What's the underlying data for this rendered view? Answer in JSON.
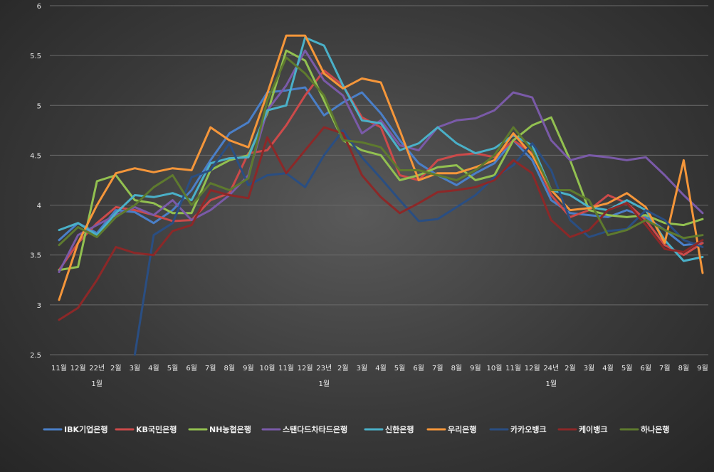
{
  "chart_data": {
    "type": "line",
    "ylim": [
      2.5,
      6
    ],
    "yticks": [
      "2.5",
      "3",
      "3.5",
      "4",
      "4.5",
      "5",
      "5.5",
      "6"
    ],
    "ytick_values": [
      2.5,
      3,
      3.5,
      4,
      4.5,
      5,
      5.5,
      6
    ],
    "grid": "horizontal",
    "legend_position": "bottom",
    "categories": [
      "11월",
      "12월",
      "22년 1월",
      "2월",
      "3월",
      "4월",
      "5월",
      "6월",
      "7월",
      "8월",
      "9월",
      "10월",
      "11월",
      "12월",
      "23년 1월",
      "2월",
      "3월",
      "4월",
      "5월",
      "6월",
      "7월",
      "8월",
      "9월",
      "10월",
      "11월",
      "12월",
      "24년 1월",
      "2월",
      "3월",
      "4월",
      "5월",
      "6월",
      "7월",
      "8월",
      "9월"
    ],
    "x_labels": [
      {
        "line1": "11월",
        "line2": ""
      },
      {
        "line1": "12월",
        "line2": ""
      },
      {
        "line1": "22년",
        "line2": "1월"
      },
      {
        "line1": "2월",
        "line2": ""
      },
      {
        "line1": "3월",
        "line2": ""
      },
      {
        "line1": "4월",
        "line2": ""
      },
      {
        "line1": "5월",
        "line2": ""
      },
      {
        "line1": "6월",
        "line2": ""
      },
      {
        "line1": "7월",
        "line2": ""
      },
      {
        "line1": "8월",
        "line2": ""
      },
      {
        "line1": "9월",
        "line2": ""
      },
      {
        "line1": "10월",
        "line2": ""
      },
      {
        "line1": "11월",
        "line2": ""
      },
      {
        "line1": "12월",
        "line2": ""
      },
      {
        "line1": "23년",
        "line2": "1월"
      },
      {
        "line1": "2월",
        "line2": ""
      },
      {
        "line1": "3월",
        "line2": ""
      },
      {
        "line1": "4월",
        "line2": ""
      },
      {
        "line1": "5월",
        "line2": ""
      },
      {
        "line1": "6월",
        "line2": ""
      },
      {
        "line1": "7월",
        "line2": ""
      },
      {
        "line1": "8월",
        "line2": ""
      },
      {
        "line1": "9월",
        "line2": ""
      },
      {
        "line1": "10월",
        "line2": ""
      },
      {
        "line1": "11월",
        "line2": ""
      },
      {
        "line1": "12월",
        "line2": ""
      },
      {
        "line1": "24년",
        "line2": "1월"
      },
      {
        "line1": "2월",
        "line2": ""
      },
      {
        "line1": "3월",
        "line2": ""
      },
      {
        "line1": "4월",
        "line2": ""
      },
      {
        "line1": "5월",
        "line2": ""
      },
      {
        "line1": "6월",
        "line2": ""
      },
      {
        "line1": "7월",
        "line2": ""
      },
      {
        "line1": "8월",
        "line2": ""
      },
      {
        "line1": "9월",
        "line2": ""
      }
    ],
    "series": [
      {
        "name": "IBK기업은행",
        "color": "#4a7fc8",
        "values": [
          3.65,
          3.82,
          3.72,
          3.95,
          3.93,
          3.82,
          3.95,
          4.15,
          4.45,
          4.72,
          4.83,
          5.13,
          5.15,
          5.18,
          4.9,
          5.03,
          5.13,
          4.92,
          4.65,
          4.42,
          4.3,
          4.2,
          4.32,
          4.42,
          4.65,
          4.45,
          4.05,
          3.92,
          3.9,
          3.88,
          3.95,
          3.88,
          3.75,
          3.6,
          3.62
        ]
      },
      {
        "name": "KB국민은행",
        "color": "#cc4a4a",
        "values": [
          3.35,
          3.62,
          3.82,
          3.98,
          3.95,
          3.9,
          3.84,
          3.85,
          4.05,
          4.12,
          4.52,
          4.55,
          4.8,
          5.1,
          5.35,
          5.2,
          4.88,
          4.78,
          4.3,
          4.25,
          4.45,
          4.5,
          4.52,
          4.48,
          4.65,
          4.52,
          4.1,
          3.88,
          3.95,
          4.1,
          4.02,
          3.85,
          3.6,
          3.5,
          3.62
        ]
      },
      {
        "name": "NH농협은행",
        "color": "#92c050",
        "values": [
          3.35,
          3.38,
          4.24,
          4.3,
          4.05,
          4.02,
          3.92,
          3.92,
          4.35,
          4.45,
          4.5,
          4.92,
          5.55,
          5.45,
          5.05,
          4.65,
          4.55,
          4.5,
          4.25,
          4.3,
          4.38,
          4.4,
          4.25,
          4.3,
          4.65,
          4.8,
          4.88,
          4.45,
          3.95,
          3.9,
          3.88,
          3.9,
          3.82,
          3.8,
          3.86
        ]
      },
      {
        "name": "스탠다드차타드은행",
        "color": "#7a5aa8",
        "values": [
          3.33,
          3.7,
          3.8,
          3.9,
          3.98,
          3.9,
          4.05,
          3.85,
          3.95,
          4.1,
          4.3,
          4.95,
          5.2,
          5.55,
          5.25,
          5.1,
          4.72,
          4.85,
          4.6,
          4.55,
          4.78,
          4.85,
          4.87,
          4.95,
          5.13,
          5.08,
          4.65,
          4.45,
          4.5,
          4.48,
          4.45,
          4.48,
          4.3,
          4.1,
          3.92
        ]
      },
      {
        "name": "신한은행",
        "color": "#4ab0c8",
        "values": [
          3.75,
          3.82,
          3.7,
          3.92,
          4.1,
          4.08,
          4.12,
          4.05,
          4.42,
          4.47,
          4.48,
          4.95,
          5.0,
          5.68,
          5.6,
          5.2,
          4.85,
          4.82,
          4.55,
          4.62,
          4.78,
          4.62,
          4.52,
          4.57,
          4.7,
          4.6,
          4.15,
          4.1,
          3.98,
          3.95,
          4.05,
          3.95,
          3.65,
          3.44,
          3.48
        ]
      },
      {
        "name": "우리은행",
        "color": "#f5963a",
        "values": [
          3.05,
          3.62,
          4.0,
          4.32,
          4.37,
          4.33,
          4.37,
          4.35,
          4.78,
          4.65,
          4.58,
          5.12,
          5.7,
          5.7,
          5.32,
          5.17,
          5.27,
          5.23,
          4.75,
          4.25,
          4.32,
          4.32,
          4.38,
          4.45,
          4.72,
          4.5,
          4.15,
          3.95,
          3.97,
          4.02,
          4.12,
          3.98,
          3.62,
          4.45,
          3.32
        ]
      },
      {
        "name": "카카오뱅크",
        "color": "#2a4e82",
        "values": [
          null,
          null,
          null,
          null,
          2.5,
          3.7,
          3.82,
          4.28,
          4.35,
          4.62,
          4.2,
          4.3,
          4.32,
          4.18,
          4.5,
          4.75,
          4.48,
          4.27,
          4.05,
          3.84,
          3.86,
          3.98,
          4.1,
          4.28,
          4.4,
          4.62,
          4.35,
          3.85,
          3.68,
          3.74,
          3.76,
          3.95,
          3.85,
          3.65,
          3.58
        ]
      },
      {
        "name": "케이뱅크",
        "color": "#8c2828",
        "values": [
          2.85,
          2.97,
          3.25,
          3.58,
          3.52,
          3.5,
          3.74,
          3.8,
          4.15,
          4.1,
          4.07,
          4.68,
          4.32,
          4.55,
          4.78,
          4.72,
          4.3,
          4.08,
          3.92,
          4.02,
          4.13,
          4.15,
          4.18,
          4.25,
          4.45,
          4.32,
          3.85,
          3.68,
          3.75,
          3.95,
          4.02,
          3.8,
          3.56,
          3.53,
          3.65
        ]
      },
      {
        "name": "하나은행",
        "color": "#5e7a2e",
        "values": [
          3.6,
          3.78,
          3.68,
          3.88,
          4.0,
          4.18,
          4.3,
          4.0,
          4.22,
          4.15,
          4.27,
          5.05,
          5.48,
          5.32,
          5.1,
          4.65,
          4.63,
          4.58,
          4.35,
          4.35,
          4.3,
          4.25,
          4.35,
          4.5,
          4.78,
          4.55,
          4.15,
          4.15,
          4.05,
          3.7,
          3.75,
          3.85,
          3.75,
          3.67,
          3.7
        ]
      }
    ]
  }
}
